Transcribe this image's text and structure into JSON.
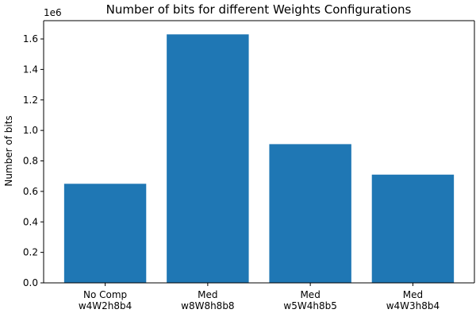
{
  "chart_data": {
    "type": "bar",
    "title": "Number of bits for different Weights Configurations",
    "xlabel": "",
    "ylabel": "Number of bits",
    "offset_label": "1e6",
    "categories": [
      [
        "No Comp",
        "w4W2h8b4"
      ],
      [
        "Med",
        "w8W8h8b8"
      ],
      [
        "Med",
        "w5W4h8b5"
      ],
      [
        "Med",
        "w4W3h8b4"
      ]
    ],
    "values": [
      650000,
      1630000,
      910000,
      710000
    ],
    "ylim": [
      0,
      1720000
    ],
    "yticks": [
      0,
      200000,
      400000,
      600000,
      800000,
      1000000,
      1200000,
      1400000,
      1600000
    ],
    "ytick_labels": [
      "0.0",
      "0.2",
      "0.4",
      "0.6",
      "0.8",
      "1.0",
      "1.2",
      "1.4",
      "1.6"
    ],
    "bar_color": "#1f77b4",
    "grid": false,
    "legend": "none"
  }
}
